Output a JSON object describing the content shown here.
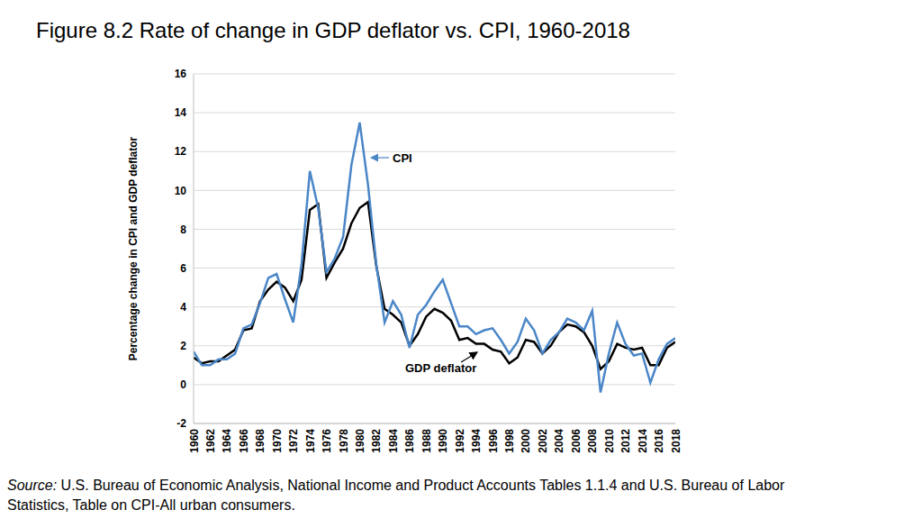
{
  "chart_data": {
    "type": "line",
    "title": "Figure 8.2 Rate of change in GDP deflator vs. CPI, 1960-2018",
    "y_label": "Percentage change in CPI and GDP deflator",
    "source_label": "Source:",
    "source": "U.S. Bureau of Economic Analysis, National Income and Product Accounts Tables 1.1.4 and U.S. Bureau of Labor Statistics, Table on CPI-All urban consumers.",
    "x": [
      1960,
      1961,
      1962,
      1963,
      1964,
      1965,
      1966,
      1967,
      1968,
      1969,
      1970,
      1971,
      1972,
      1973,
      1974,
      1975,
      1976,
      1977,
      1978,
      1979,
      1980,
      1981,
      1982,
      1983,
      1984,
      1985,
      1986,
      1987,
      1988,
      1989,
      1990,
      1991,
      1992,
      1993,
      1994,
      1995,
      1996,
      1997,
      1998,
      1999,
      2000,
      2001,
      2002,
      2003,
      2004,
      2005,
      2006,
      2007,
      2008,
      2009,
      2010,
      2011,
      2012,
      2013,
      2014,
      2015,
      2016,
      2017,
      2018
    ],
    "series": [
      {
        "name": "GDP deflator",
        "color": "#000000",
        "values": [
          1.4,
          1.1,
          1.2,
          1.2,
          1.5,
          1.8,
          2.8,
          2.9,
          4.3,
          4.9,
          5.3,
          5.0,
          4.3,
          5.4,
          9.0,
          9.3,
          5.5,
          6.3,
          7.0,
          8.3,
          9.1,
          9.4,
          6.1,
          3.9,
          3.6,
          3.2,
          2.0,
          2.6,
          3.5,
          3.9,
          3.7,
          3.3,
          2.3,
          2.4,
          2.1,
          2.1,
          1.8,
          1.7,
          1.1,
          1.4,
          2.3,
          2.2,
          1.6,
          2.0,
          2.7,
          3.1,
          3.0,
          2.7,
          2.0,
          0.8,
          1.2,
          2.1,
          1.9,
          1.8,
          1.9,
          1.0,
          1.0,
          1.9,
          2.2
        ]
      },
      {
        "name": "CPI",
        "color": "#4a86c8",
        "values": [
          1.7,
          1.0,
          1.0,
          1.3,
          1.3,
          1.6,
          2.9,
          3.1,
          4.2,
          5.5,
          5.7,
          4.4,
          3.2,
          6.2,
          11.0,
          9.1,
          5.8,
          6.5,
          7.6,
          11.3,
          13.5,
          10.3,
          6.2,
          3.2,
          4.3,
          3.6,
          1.9,
          3.6,
          4.1,
          4.8,
          5.4,
          4.2,
          3.0,
          3.0,
          2.6,
          2.8,
          2.9,
          2.3,
          1.6,
          2.2,
          3.4,
          2.8,
          1.6,
          2.3,
          2.7,
          3.4,
          3.2,
          2.8,
          3.8,
          -0.4,
          1.6,
          3.2,
          2.1,
          1.5,
          1.6,
          0.1,
          1.3,
          2.1,
          2.4
        ]
      }
    ],
    "xlim": [
      1960,
      2018
    ],
    "xticks": [
      1960,
      1962,
      1964,
      1966,
      1968,
      1970,
      1972,
      1974,
      1976,
      1978,
      1980,
      1982,
      1984,
      1986,
      1988,
      1990,
      1992,
      1994,
      1996,
      1998,
      2000,
      2002,
      2004,
      2006,
      2008,
      2010,
      2012,
      2014,
      2016,
      2018
    ],
    "ylim": [
      -2,
      16
    ],
    "yticks": [
      -2,
      0,
      2,
      4,
      6,
      8,
      10,
      12,
      14,
      16
    ],
    "grid": true
  }
}
